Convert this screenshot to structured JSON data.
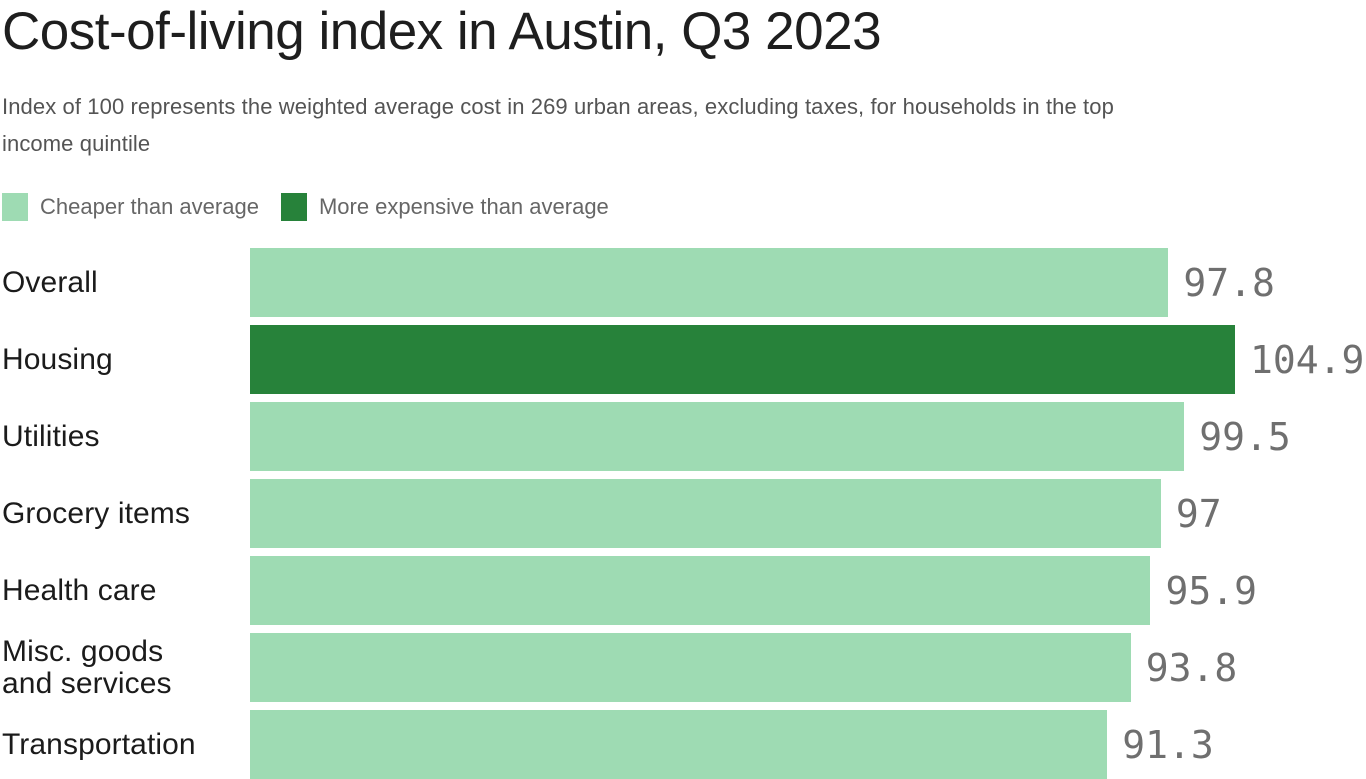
{
  "title": "Cost-of-living index in Austin, Q3 2023",
  "subtitle_lines": [
    "Index of 100 represents the weighted average cost in 269 urban areas, excluding taxes, for households in the top",
    "income quintile"
  ],
  "legend": [
    {
      "label": "Cheaper than average",
      "color": "#9EDBB3"
    },
    {
      "label": "More expensive than average",
      "color": "#27823A"
    }
  ],
  "chart_data": {
    "type": "bar",
    "orientation": "horizontal",
    "title": "Cost-of-living index in Austin, Q3 2023",
    "subtitle": "Index of 100 represents the weighted average cost in 269 urban areas, excluding taxes, for households in the top income quintile",
    "categories": [
      "Overall",
      "Housing",
      "Utilities",
      "Grocery items",
      "Health care",
      "Misc. goods and services",
      "Transportation"
    ],
    "values": [
      97.8,
      104.9,
      99.5,
      97,
      95.9,
      93.8,
      91.3
    ],
    "value_labels": [
      "97.8",
      "104.9",
      "99.5",
      "97",
      "95.9",
      "93.8",
      "91.3"
    ],
    "more_expensive_than_average": [
      false,
      true,
      false,
      false,
      false,
      false,
      false
    ],
    "xlim": [
      0,
      104.9
    ],
    "grid": false,
    "legend_position": "top",
    "bar_colors": {
      "cheaper": "#9EDBB3",
      "expensive": "#27823A"
    },
    "value_label_color": "#6f6f6f",
    "category_label_color": "#1b1b1b"
  }
}
